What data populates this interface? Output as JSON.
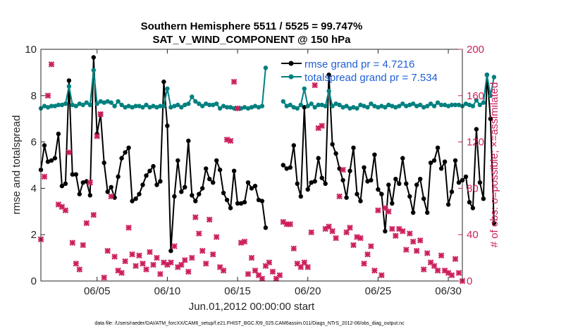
{
  "chart_data": {
    "type": "line",
    "title_line1": "Southern Hemisphere 5511 / 5525 = 99.747%",
    "title_line2": "SAT_V_WIND_COMPONENT @ 150 hPa",
    "xlabel": "Jun.01,2012 00:00:00 start",
    "ylabel_left": "rmse and totalspread",
    "ylabel_right": "# of obs: o=possible; ×=assimilated",
    "xlim": [
      1,
      31
    ],
    "ylim_left": [
      0,
      10
    ],
    "ylim_right": [
      0,
      200
    ],
    "x_ticks": [
      {
        "value": 5,
        "label": "06/05"
      },
      {
        "value": 10,
        "label": "06/10"
      },
      {
        "value": 15,
        "label": "06/15"
      },
      {
        "value": 20,
        "label": "06/20"
      },
      {
        "value": 25,
        "label": "06/25"
      },
      {
        "value": 30,
        "label": "06/30"
      }
    ],
    "y_ticks_left": [
      "0",
      "2",
      "4",
      "6",
      "8",
      "10"
    ],
    "y_ticks_right": [
      "0",
      "40",
      "80",
      "120",
      "160",
      "200"
    ],
    "legend": [
      "rmse grand pr = 4.7216",
      "totalspread grand pr = 7.534"
    ],
    "colors": {
      "rmse": "#000000",
      "spread": "#00807f",
      "obs": "#cc1f5d",
      "axis": "#262626",
      "legend_text": "#1f5fd6"
    },
    "series": [
      {
        "name": "rmse",
        "axis": "left",
        "x_start": 1,
        "step": 0.25,
        "values": [
          4.8,
          5.85,
          5.15,
          5.2,
          5.3,
          6.35,
          4.1,
          4.2,
          8.65,
          4.6,
          4.6,
          3.75,
          4.25,
          4.3,
          3.7,
          9.65,
          6.35,
          7.2,
          5.1,
          3.85,
          4.05,
          3.6,
          4.5,
          5.3,
          5.55,
          5.75,
          3.45,
          3.55,
          3.75,
          4.15,
          4.55,
          4.75,
          4.95,
          4.15,
          4.3,
          8.6,
          6.7,
          1.3,
          3.65,
          5.2,
          3.85,
          4.05,
          6.05,
          3.7,
          3.45,
          3.75,
          4.0,
          4.85,
          4.4,
          4.25,
          5.2,
          4.8,
          3.8,
          3.5,
          3.15,
          4.75,
          3.35,
          3.35,
          3.4,
          4.25,
          4.0,
          4.1,
          3.5,
          3.45,
          2.3,
          null,
          null,
          null,
          null,
          5.0,
          4.85,
          4.9,
          5.85,
          4.2,
          3.65,
          7.5,
          3.95,
          4.25,
          4.3,
          5.3,
          4.45,
          4.2,
          8.9,
          5.9,
          5.5,
          4.85,
          4.35,
          3.6,
          4.75,
          5.75,
          3.75,
          3.45,
          4.9,
          4.3,
          4.35,
          5.45,
          3.95,
          3.75,
          2.15,
          4.15,
          3.35,
          4.4,
          4.2,
          5.3,
          4.2,
          3.65,
          2.95,
          4.15,
          4.4,
          3.55,
          2.95,
          5.1,
          5.2,
          5.75,
          4.85,
          5.15,
          3.3,
          3.85,
          5.2,
          4.25,
          4.35,
          4.5,
          3.4,
          3.15,
          6.55,
          4.25,
          3.55,
          8.9,
          7.0,
          2.5
        ]
      },
      {
        "name": "totalspread",
        "axis": "left",
        "x_start": 1,
        "step": 0.25,
        "values": [
          7.45,
          7.55,
          7.5,
          7.55,
          7.55,
          7.6,
          7.6,
          7.65,
          8.4,
          7.6,
          7.55,
          7.65,
          7.6,
          7.7,
          7.6,
          9.1,
          7.65,
          7.75,
          7.7,
          7.75,
          7.7,
          7.55,
          7.75,
          7.6,
          7.5,
          7.55,
          7.5,
          7.55,
          7.55,
          7.5,
          7.6,
          7.5,
          7.55,
          7.5,
          7.55,
          7.55,
          8.3,
          7.5,
          7.55,
          7.6,
          7.5,
          7.6,
          7.65,
          7.95,
          7.75,
          7.65,
          7.55,
          7.65,
          7.6,
          7.6,
          7.65,
          7.45,
          7.55,
          7.5,
          7.5,
          7.45,
          7.45,
          7.45,
          7.5,
          7.45,
          7.5,
          7.55,
          7.5,
          7.55,
          9.2,
          null,
          null,
          null,
          null,
          7.75,
          7.55,
          7.6,
          7.5,
          7.45,
          7.6,
          8.3,
          7.55,
          7.65,
          7.5,
          7.6,
          7.6,
          7.55,
          8.2,
          7.55,
          7.65,
          7.6,
          7.5,
          7.55,
          7.45,
          7.5,
          7.45,
          7.6,
          7.55,
          7.5,
          7.65,
          7.55,
          7.5,
          7.55,
          7.5,
          7.6,
          7.55,
          7.5,
          7.55,
          7.65,
          7.55,
          7.6,
          7.65,
          7.55,
          7.6,
          7.5,
          7.55,
          7.65,
          7.55,
          7.7,
          7.6,
          7.6,
          7.55,
          7.6,
          7.6,
          7.6,
          7.55,
          7.65,
          7.6,
          7.55,
          7.8,
          7.6,
          7.7,
          8.9,
          8.0,
          8.8
        ]
      }
    ],
    "obs_assimilated": {
      "axis": "right",
      "points": [
        [
          1,
          36
        ],
        [
          1.25,
          90
        ],
        [
          1.5,
          160
        ],
        [
          1.75,
          187
        ],
        [
          2.25,
          66
        ],
        [
          2.5,
          64
        ],
        [
          2.75,
          61
        ],
        [
          3.0,
          111
        ],
        [
          3.25,
          33
        ],
        [
          3.5,
          15
        ],
        [
          3.75,
          10
        ],
        [
          4.0,
          31
        ],
        [
          4.25,
          50
        ],
        [
          4.5,
          85
        ],
        [
          4.75,
          57
        ],
        [
          5.0,
          125
        ],
        [
          5.25,
          144
        ],
        [
          5.5,
          3
        ],
        [
          5.75,
          26
        ],
        [
          6.0,
          73
        ],
        [
          6.25,
          21
        ],
        [
          6.5,
          9
        ],
        [
          6.75,
          7
        ],
        [
          7.0,
          17
        ],
        [
          7.25,
          46
        ],
        [
          7.5,
          23
        ],
        [
          7.75,
          13
        ],
        [
          8.0,
          22
        ],
        [
          8.25,
          15
        ],
        [
          8.5,
          10
        ],
        [
          8.75,
          25
        ],
        [
          9.0,
          14
        ],
        [
          9.25,
          20
        ],
        [
          9.5,
          6
        ],
        [
          9.75,
          16
        ],
        [
          10.0,
          14
        ],
        [
          10.25,
          16
        ],
        [
          10.5,
          30
        ],
        [
          10.75,
          12
        ],
        [
          11.0,
          14
        ],
        [
          11.25,
          18
        ],
        [
          11.5,
          8
        ],
        [
          11.75,
          20
        ],
        [
          12.0,
          55
        ],
        [
          12.25,
          41
        ],
        [
          12.5,
          26
        ],
        [
          12.75,
          15
        ],
        [
          13.0,
          53
        ],
        [
          13.25,
          23
        ],
        [
          13.5,
          38
        ],
        [
          13.75,
          12
        ],
        [
          14.0,
          9
        ],
        [
          14.25,
          122
        ],
        [
          14.5,
          121
        ],
        [
          14.75,
          172
        ],
        [
          15.0,
          149
        ],
        [
          15.25,
          33
        ],
        [
          15.5,
          34
        ],
        [
          15.75,
          6
        ],
        [
          16.0,
          20
        ],
        [
          16.25,
          9
        ],
        [
          16.5,
          5
        ],
        [
          16.75,
          2
        ],
        [
          17.0,
          13
        ],
        [
          17.25,
          16
        ],
        [
          17.5,
          8
        ],
        [
          17.75,
          2
        ],
        [
          18.0,
          5
        ],
        [
          18.25,
          51
        ],
        [
          18.5,
          49
        ],
        [
          18.75,
          49
        ],
        [
          19.0,
          28
        ],
        [
          19.25,
          15
        ],
        [
          19.5,
          12
        ],
        [
          19.75,
          16
        ],
        [
          20.0,
          12
        ],
        [
          20.25,
          42
        ],
        [
          20.5,
          169
        ],
        [
          20.75,
          132
        ],
        [
          21.0,
          134
        ],
        [
          21.25,
          45
        ],
        [
          21.5,
          47
        ],
        [
          21.75,
          43
        ],
        [
          22.0,
          37
        ],
        [
          22.25,
          73
        ],
        [
          22.5,
          96
        ],
        [
          22.75,
          42
        ],
        [
          23.0,
          46
        ],
        [
          23.25,
          31
        ],
        [
          23.5,
          38
        ],
        [
          23.75,
          37
        ],
        [
          24.0,
          15
        ],
        [
          24.25,
          23
        ],
        [
          24.5,
          30
        ],
        [
          24.75,
          9
        ],
        [
          25.0,
          61
        ],
        [
          25.25,
          5
        ],
        [
          25.5,
          63
        ],
        [
          25.75,
          60
        ],
        [
          26.0,
          45
        ],
        [
          26.25,
          39
        ],
        [
          26.5,
          45
        ],
        [
          26.75,
          43
        ],
        [
          27.0,
          27
        ],
        [
          27.25,
          41
        ],
        [
          27.5,
          34
        ],
        [
          27.75,
          26
        ],
        [
          28.0,
          35
        ],
        [
          28.25,
          10
        ],
        [
          28.5,
          24
        ],
        [
          28.75,
          16
        ],
        [
          29.0,
          13
        ],
        [
          29.25,
          9
        ],
        [
          29.5,
          22
        ],
        [
          29.75,
          9
        ],
        [
          30.0,
          7
        ],
        [
          30.25,
          5
        ],
        [
          30.5,
          19
        ],
        [
          30.75,
          7
        ],
        [
          31.0,
          0
        ]
      ]
    }
  },
  "footnote": "data file: /Users/raeder/DAI/ATM_forcXX/CAM6_setup/f.e21.FHIST_BGC.f09_025.CAM6assim.011/Diags_NTrS_2012-06/obs_diag_output.nc"
}
